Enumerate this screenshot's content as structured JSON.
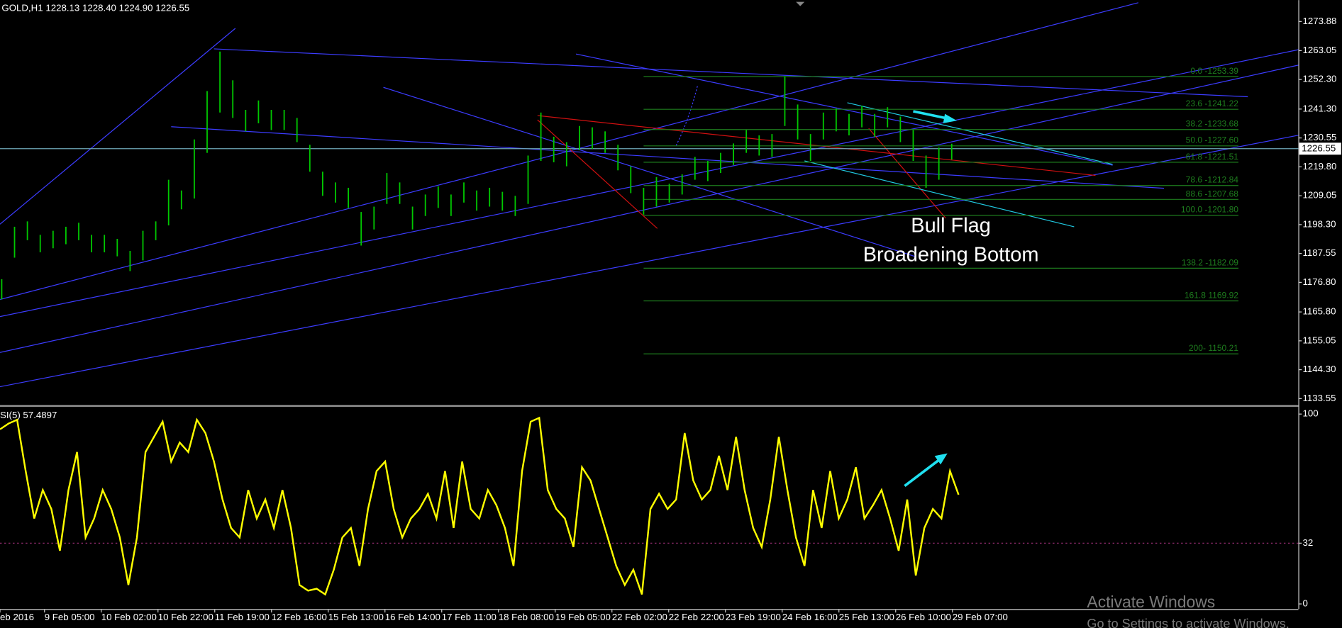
{
  "chart_data": [
    {
      "type": "ohlc",
      "title": "GOLD,H1 1228.13 1228.40 1224.90 1226.55",
      "series": [
        {
          "color": "#00c800",
          "high": [
            1178.0,
            1197.5,
            1199.5,
            1194.5,
            1196.0,
            1197.5,
            1199.0,
            1194.5,
            1194.5,
            1193.0,
            1188.5,
            1196.0,
            1199.5,
            1215.0,
            1211.0,
            1230.0,
            1248.0,
            1262.7,
            1252.0,
            1241.0,
            1244.5,
            1241.0,
            1241.0,
            1238.0,
            1228.0,
            1218.0,
            1214.0,
            1212.0,
            1203.0,
            1205.0,
            1217.5,
            1214.0,
            1205.0,
            1209.5,
            1212.5,
            1209.5,
            1214.0,
            1211.0,
            1212.0,
            1210.5,
            1209.0,
            1224.0,
            1240.0,
            1231.0,
            1229.0,
            1235.0,
            1234.5,
            1233.0,
            1228.0,
            1220.0,
            1212.0,
            1216.0,
            1213.5,
            1217.0,
            1223.5,
            1222.0,
            1225.0,
            1228.5,
            1233.5,
            1231.5,
            1232.0,
            1253.5,
            1243.0,
            1232.0,
            1240.0,
            1241.5,
            1239.5,
            1242.5,
            1239.5,
            1242.0,
            1238.5,
            1233.5,
            1224.0,
            1227.0,
            1228.4
          ],
          "low": [
            1170.5,
            1186.0,
            1192.5,
            1188.0,
            1189.5,
            1191.0,
            1192.5,
            1188.0,
            1188.0,
            1186.5,
            1181.0,
            1185.0,
            1192.5,
            1198.0,
            1204.0,
            1208.0,
            1225.0,
            1240.0,
            1238.0,
            1233.0,
            1236.0,
            1233.5,
            1233.5,
            1229.0,
            1218.0,
            1209.0,
            1206.5,
            1204.5,
            1190.5,
            1196.5,
            1206.0,
            1206.0,
            1196.5,
            1201.5,
            1204.5,
            1201.5,
            1206.5,
            1203.5,
            1205.0,
            1203.5,
            1201.5,
            1206.0,
            1222.0,
            1221.5,
            1220.0,
            1226.0,
            1226.5,
            1225.0,
            1218.5,
            1210.0,
            1202.0,
            1205.0,
            1206.5,
            1209.5,
            1215.0,
            1214.5,
            1217.5,
            1220.5,
            1225.0,
            1224.0,
            1223.5,
            1235.0,
            1230.0,
            1222.0,
            1230.0,
            1233.0,
            1231.5,
            1234.5,
            1231.0,
            1234.5,
            1229.0,
            1222.0,
            1212.0,
            1215.0,
            1222.5
          ]
        }
      ],
      "xtick_labels": [
        "eb 2016",
        "9 Feb 05:00",
        "10 Feb 02:00",
        "10 Feb 22:00",
        "11 Feb 19:00",
        "12 Feb 16:00",
        "15 Feb 13:00",
        "16 Feb 14:00",
        "17 Feb 11:00",
        "18 Feb 08:00",
        "19 Feb 05:00",
        "22 Feb 02:00",
        "22 Feb 22:00",
        "23 Feb 19:00",
        "24 Feb 16:00",
        "25 Feb 13:00",
        "26 Feb 10:00",
        "29 Feb 07:00"
      ],
      "ylim": [
        1131.3,
        1281.84
      ],
      "yticks": [
        1133.55,
        {
          "value": 1144.3,
          "label": "1144.30"
        },
        1155.05,
        {
          "value": 1165.8,
          "label": "1165.80"
        },
        {
          "value": 1176.8,
          "label": "1176.80"
        },
        1187.55,
        {
          "value": 1198.3,
          "label": "1198.30"
        },
        1209.05,
        {
          "value": 1219.8,
          "label": "1219.80"
        },
        1230.55,
        {
          "value": 1241.3,
          "label": "1241.30"
        },
        {
          "value": 1252.3,
          "label": "1252.30"
        },
        1263.05,
        1273.88
      ],
      "current_price": 1226.55,
      "fib_levels": [
        {
          "value": 1253.39,
          "label": "0.0 -1253.39"
        },
        {
          "value": 1241.22,
          "label": "23.6 -1241.22"
        },
        {
          "value": 1233.68,
          "label": "38.2 -1233.68"
        },
        {
          "value": 1227.6,
          "label": "50.0 -1227.60"
        },
        {
          "value": 1221.51,
          "label": "61.8 -1221.51"
        },
        {
          "value": 1212.84,
          "label": "78.6 -1212.84"
        },
        {
          "value": 1207.68,
          "label": "88.6 -1207.68"
        },
        {
          "value": 1201.8,
          "label": "100.0 -1201.80"
        },
        {
          "value": 1182.09,
          "label": "138.2 -1182.09"
        },
        {
          "value": 1169.92,
          "label": "161.8 1169.92"
        },
        {
          "value": 1150.21,
          "label": "200- 1150.21"
        }
      ],
      "fib_color": "#1e7d1e",
      "annotations": [
        {
          "text": "Bull Flag",
          "color": "#2f8ef2"
        },
        {
          "text": "Broadening Bottom",
          "color": "#ff1010"
        }
      ]
    },
    {
      "type": "line",
      "title": "SI(5) 57.4897",
      "series": [
        {
          "color": "#ffff00",
          "values": [
            92,
            95,
            97,
            70,
            45,
            60,
            50,
            28,
            60,
            80,
            35,
            45,
            60,
            50,
            35,
            10,
            35,
            80,
            88,
            96,
            75,
            85,
            80,
            97,
            90,
            75,
            55,
            40,
            35,
            60,
            45,
            55,
            40,
            60,
            40,
            10,
            7,
            8,
            5,
            18,
            35,
            40,
            20,
            50,
            70,
            75,
            50,
            35,
            45,
            50,
            58,
            45,
            70,
            40,
            75,
            50,
            45,
            60,
            52,
            40,
            20,
            70,
            96,
            98,
            60,
            50,
            45,
            30,
            72,
            65,
            50,
            35,
            20,
            10,
            18,
            5,
            50,
            58,
            50,
            55,
            90,
            65,
            55,
            60,
            78,
            60,
            88,
            60,
            40,
            30,
            55,
            88,
            60,
            35,
            20,
            60,
            40,
            70,
            45,
            55,
            72,
            45,
            52,
            60,
            45,
            28,
            55,
            15,
            40,
            50,
            45,
            70,
            57.5
          ]
        }
      ],
      "ylim": [
        -2.7,
        102.7
      ],
      "yticks": [
        0,
        32,
        100
      ],
      "levels": [
        32
      ],
      "level_color": "#a0307a"
    }
  ],
  "watermark": {
    "title": "Activate Windows",
    "subtitle": "Go to Settings to activate Windows."
  }
}
